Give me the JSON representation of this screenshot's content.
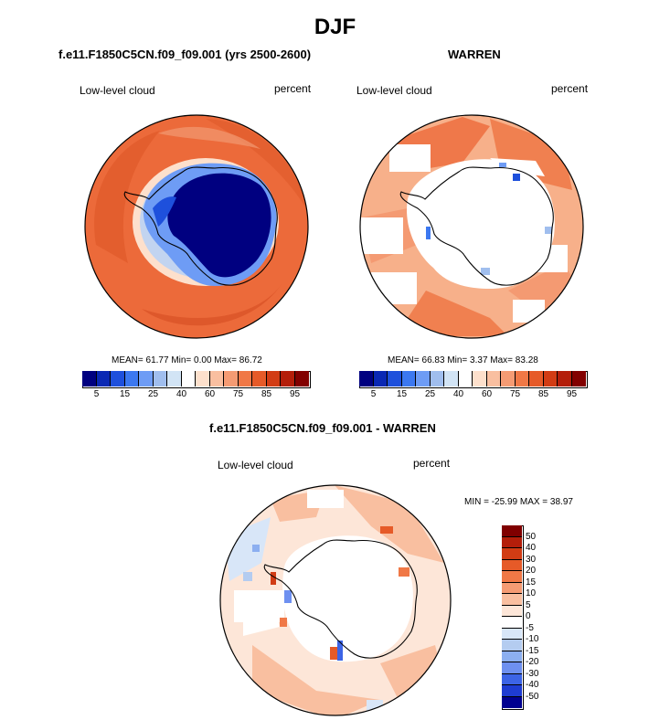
{
  "title": "DJF",
  "panels": {
    "left": {
      "title": "f.e11.F1850C5CN.f09_f09.001 (yrs 2500-2600)",
      "variable": "Low-level cloud",
      "units": "percent",
      "stats": "MEAN= 61.77  Min=   0.00  Max= 86.72"
    },
    "right": {
      "title": "WARREN",
      "variable": "Low-level cloud",
      "units": "percent",
      "stats": "MEAN= 66.83  Min=   3.37  Max= 83.28"
    },
    "diff": {
      "title": "f.e11.F1850C5CN.f09_f09.001 - WARREN",
      "variable": "Low-level cloud",
      "units": "percent",
      "stats": "MIN = -25.99 MAX =  38.97"
    }
  },
  "colorbar_abs": {
    "colors": [
      "#000080",
      "#0a28b4",
      "#1e50dc",
      "#3c78f0",
      "#6e9cf5",
      "#a0beee",
      "#d2e4f5",
      "#ffffff",
      "#fde0cc",
      "#f9bfa0",
      "#f59b73",
      "#f07846",
      "#e65a28",
      "#d23c14",
      "#b41e0a",
      "#820000"
    ],
    "tick_labels": [
      "5",
      "15",
      "25",
      "40",
      "60",
      "75",
      "85",
      "95"
    ]
  },
  "colorbar_diff": {
    "colors": [
      "#800000",
      "#b41e0a",
      "#d23c14",
      "#e65a28",
      "#f07846",
      "#f59b73",
      "#f9bfa0",
      "#fde6d8",
      "#ffffff",
      "#d8e6f8",
      "#b4ccf0",
      "#8caff0",
      "#6e90f0",
      "#3c64e6",
      "#1e3cd2",
      "#000090"
    ],
    "tick_labels": [
      "50",
      "40",
      "30",
      "20",
      "15",
      "10",
      "5",
      "0",
      "-5",
      "-10",
      "-15",
      "-20",
      "-30",
      "-40",
      "-50"
    ]
  }
}
